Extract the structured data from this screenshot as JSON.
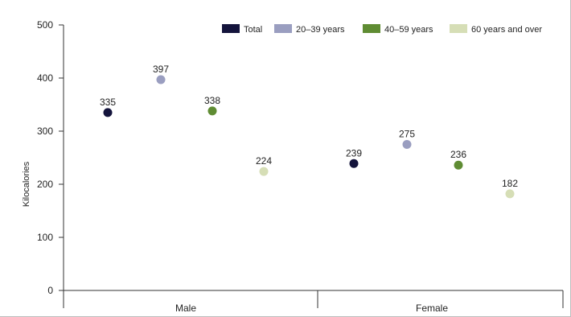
{
  "chart_data": {
    "type": "scatter",
    "title": "",
    "xlabel": "",
    "ylabel": "Kilocalories",
    "categories": [
      "Male",
      "Female"
    ],
    "ylim": [
      0,
      500
    ],
    "yticks": [
      0,
      100,
      200,
      300,
      400,
      500
    ],
    "grid": false,
    "legend_position": "top-right",
    "series": [
      {
        "name": "Total",
        "color": "#14143c",
        "values": [
          335,
          239
        ],
        "labels": [
          "335",
          "239"
        ]
      },
      {
        "name": "20–39 years",
        "color": "#9a9ec0",
        "values": [
          397,
          275
        ],
        "labels": [
          "397",
          "275"
        ]
      },
      {
        "name": "40–59 years",
        "color": "#5f8c33",
        "values": [
          338,
          236
        ],
        "labels": [
          "338",
          "236"
        ]
      },
      {
        "name": "60 years and over",
        "color": "#d6deb6",
        "values": [
          224,
          182
        ],
        "labels": [
          "224",
          "182"
        ]
      }
    ]
  }
}
